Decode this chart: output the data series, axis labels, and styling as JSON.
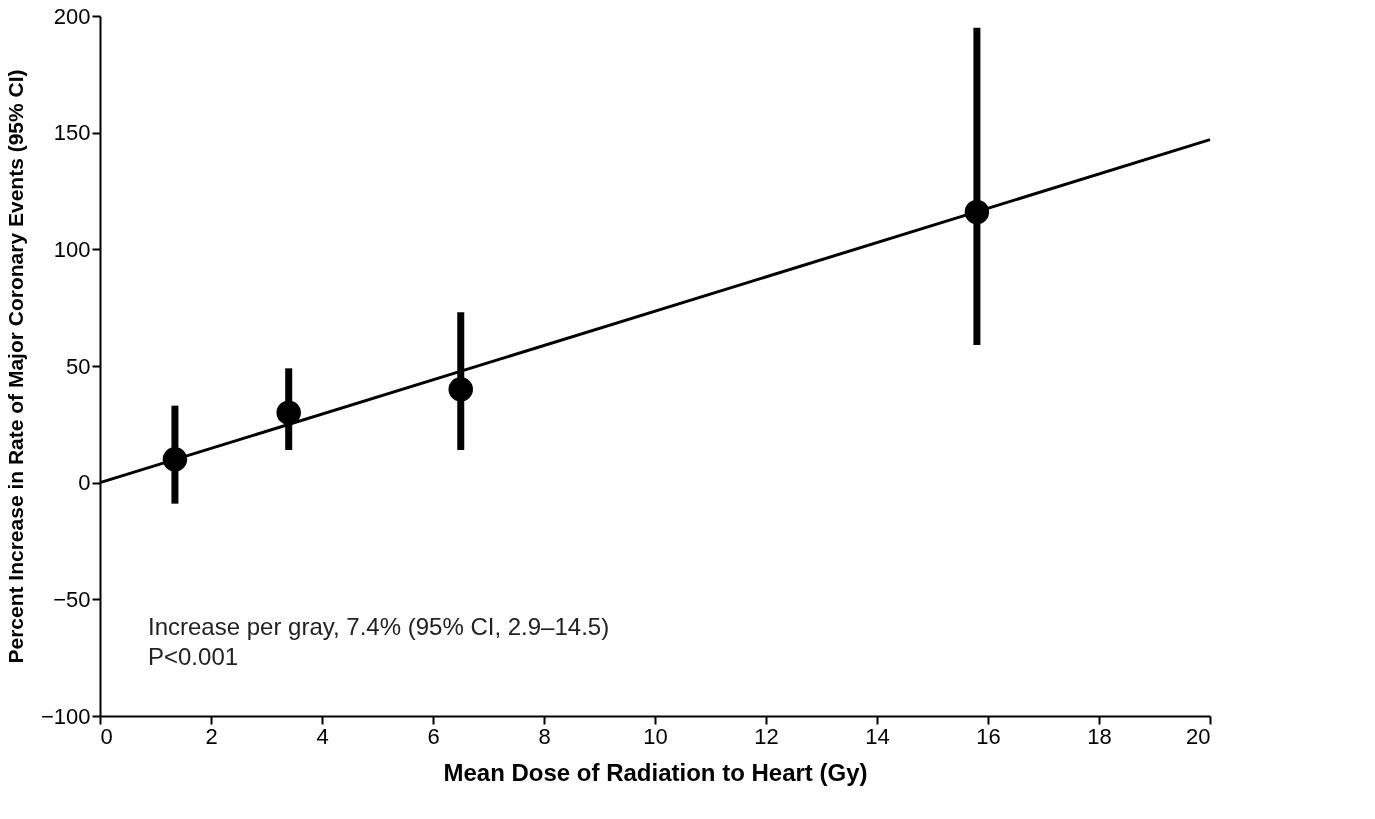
{
  "chart_data": {
    "type": "scatter",
    "xlabel": "Mean Dose of Radiation to Heart (Gy)",
    "ylabel": "Percent Increase in Rate of Major Coronary Events (95% CI)",
    "xlim": [
      0,
      20
    ],
    "ylim": [
      -100,
      200
    ],
    "xticks": [
      0,
      2,
      4,
      6,
      8,
      10,
      12,
      14,
      16,
      18,
      20
    ],
    "yticks": [
      {
        "value": -100,
        "label": "−100"
      },
      {
        "value": -50,
        "label": "−50"
      },
      0,
      50,
      100,
      150,
      200
    ],
    "grid": false,
    "series": [
      {
        "color": "#000000",
        "marker": "circle",
        "x": [
          1.35,
          3.4,
          6.5,
          15.8
        ],
        "values": [
          10,
          30,
          40,
          116
        ],
        "errors": [
          [
            -9,
            33
          ],
          [
            14,
            49
          ],
          [
            14,
            73
          ],
          [
            59,
            195
          ]
        ]
      },
      {
        "type": "line",
        "color": "#000000",
        "line_style": "solid",
        "marker": "none",
        "x": [
          0,
          20
        ],
        "values": [
          0,
          147
        ]
      }
    ],
    "annotations": [
      "Increase per gray, 7.4% (95% CI, 2.9–14.5)",
      "P<0.001"
    ]
  }
}
